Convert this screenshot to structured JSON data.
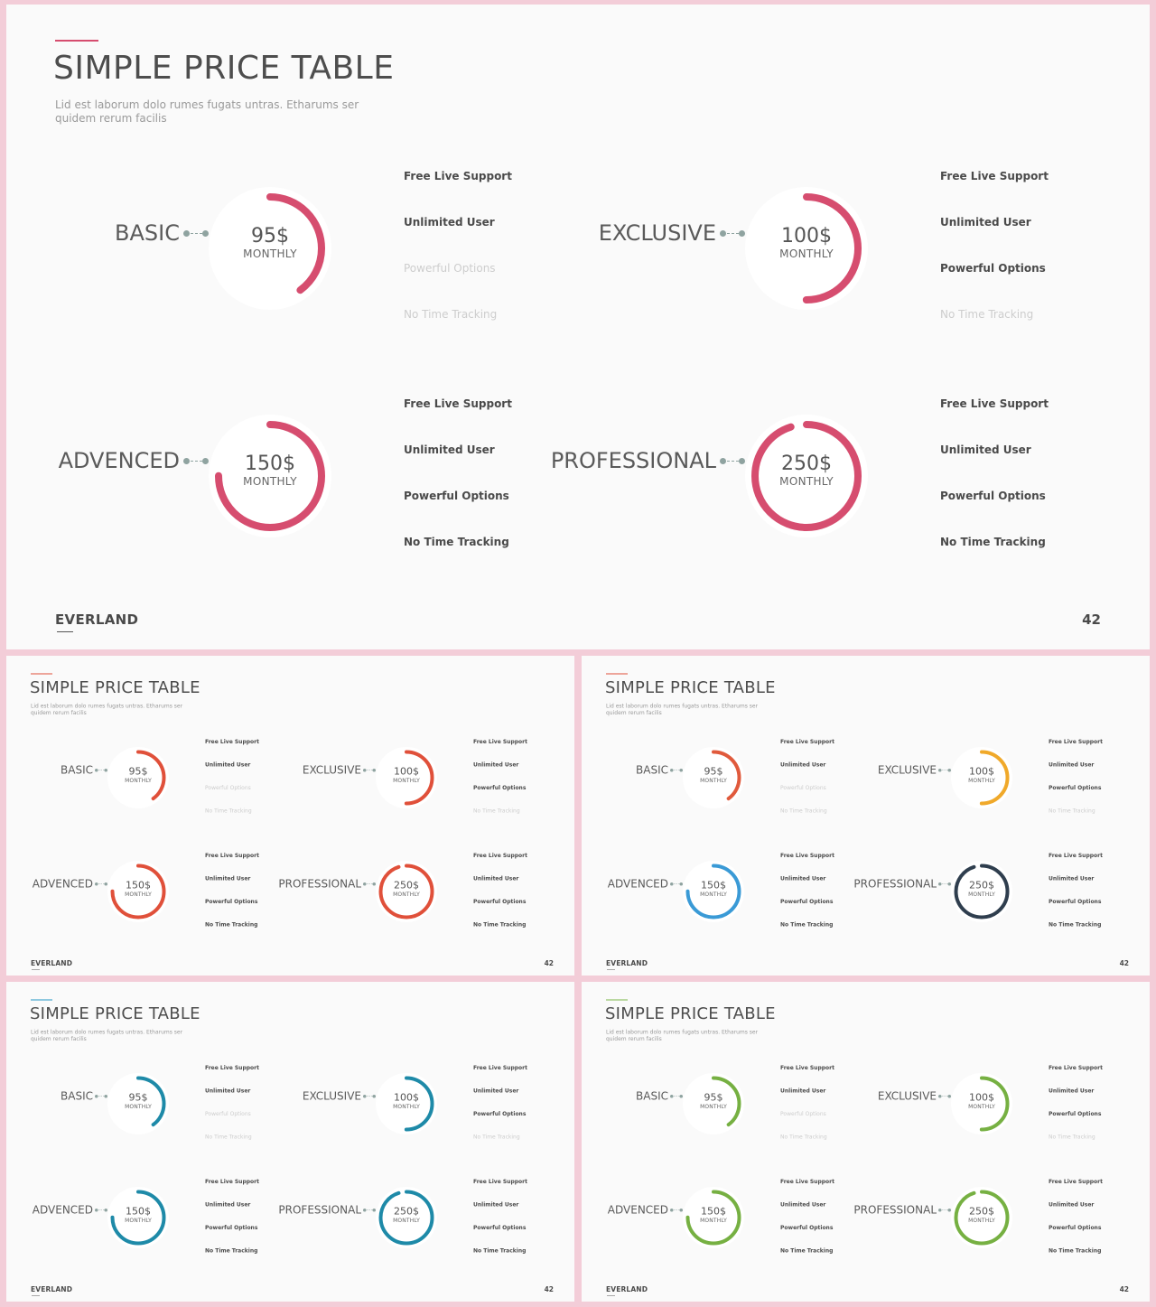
{
  "slide": {
    "title": "SIMPLE PRICE TABLE",
    "subtitle": "Lid est laborum dolo rumes fugats untras. Etharums ser quidem rerum facilis",
    "brand": "EVERLAND",
    "page_number": "42",
    "period_label": "MONTHLY",
    "plans": [
      {
        "name": "BASIC",
        "price": "95$",
        "ring_fill": 0.4,
        "features": [
          {
            "label": "Free Live Support",
            "enabled": true
          },
          {
            "label": "Unlimited User",
            "enabled": true
          },
          {
            "label": "Powerful Options",
            "enabled": false
          },
          {
            "label": "No Time Tracking",
            "enabled": false
          }
        ]
      },
      {
        "name": "EXCLUSIVE",
        "price": "100$",
        "ring_fill": 0.5,
        "features": [
          {
            "label": "Free Live Support",
            "enabled": true
          },
          {
            "label": "Unlimited User",
            "enabled": true
          },
          {
            "label": "Powerful Options",
            "enabled": true
          },
          {
            "label": "No Time Tracking",
            "enabled": false
          }
        ]
      },
      {
        "name": "ADVENCED",
        "price": "150$",
        "ring_fill": 0.75,
        "features": [
          {
            "label": "Free Live Support",
            "enabled": true
          },
          {
            "label": "Unlimited User",
            "enabled": true
          },
          {
            "label": "Powerful Options",
            "enabled": true
          },
          {
            "label": "No Time Tracking",
            "enabled": true
          }
        ]
      },
      {
        "name": "PROFESSIONAL",
        "price": "250$",
        "ring_fill": 0.95,
        "features": [
          {
            "label": "Free Live Support",
            "enabled": true
          },
          {
            "label": "Unlimited User",
            "enabled": true
          },
          {
            "label": "Powerful Options",
            "enabled": true
          },
          {
            "label": "No Time Tracking",
            "enabled": true
          }
        ]
      }
    ]
  },
  "variants": [
    {
      "accent": "#d64d6f",
      "ring_colors": [
        "#d64d6f",
        "#d64d6f",
        "#d64d6f",
        "#d64d6f"
      ]
    },
    {
      "accent": "#e0503a",
      "ring_colors": [
        "#e0503a",
        "#e0503a",
        "#e0503a",
        "#e0503a"
      ]
    },
    {
      "accent": "#e0503a",
      "ring_colors": [
        "#e05a3c",
        "#f0a92a",
        "#3a9ad6",
        "#2f3e4e"
      ]
    },
    {
      "accent": "#2196c4",
      "ring_colors": [
        "#1e8aa8",
        "#1e8aa8",
        "#1e8aa8",
        "#1e8aa8"
      ]
    },
    {
      "accent": "#7ab648",
      "ring_colors": [
        "#76b042",
        "#76b042",
        "#76b042",
        "#76b042"
      ]
    }
  ]
}
